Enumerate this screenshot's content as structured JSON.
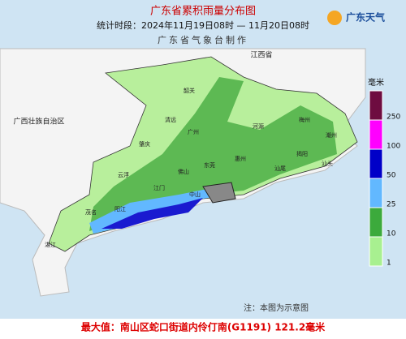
{
  "header": {
    "title": "广东省累积雨量分布图",
    "period": "统计时段：2024年11月19日08时 — 11月20日08时",
    "producer": "广东省气象台制作"
  },
  "logo": {
    "text": "广东天气"
  },
  "legend": {
    "unit": "毫米",
    "items": [
      {
        "label": "250",
        "color": "#6e0c40"
      },
      {
        "label": "100",
        "color": "#ff00ff"
      },
      {
        "label": "50",
        "color": "#0000c8"
      },
      {
        "label": "25",
        "color": "#62b8ff"
      },
      {
        "label": "10",
        "color": "#3caa3c"
      },
      {
        "label": "1",
        "color": "#a8f090"
      }
    ]
  },
  "places": [
    "江西省",
    "广西壮族自治区",
    "韶关",
    "清远",
    "河源",
    "梅州",
    "潮州",
    "揭阳",
    "汕头",
    "汕尾",
    "惠州",
    "广州",
    "肇庆",
    "云浮",
    "佛山",
    "东莞",
    "江门",
    "中山",
    "阳江",
    "茂名",
    "湛江"
  ],
  "note": "注：本图为示意图",
  "maximum": "最大值：南山区蛇口街道内伶仃南(G1191) 121.2毫米"
}
